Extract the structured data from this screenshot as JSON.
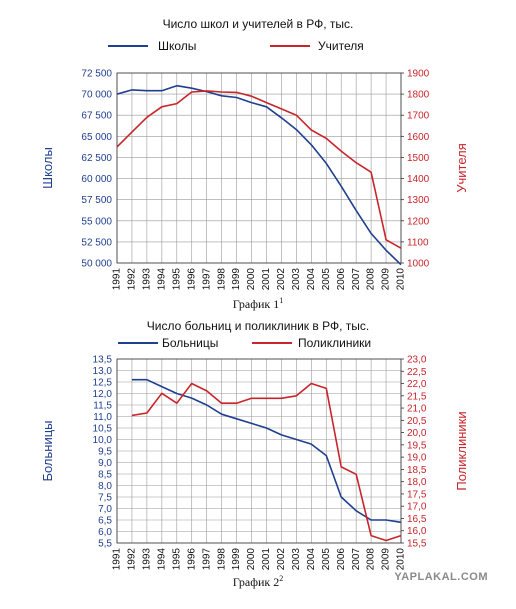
{
  "colors": {
    "blue": "#1f3f8f",
    "red": "#c8252a"
  },
  "chart_data": [
    {
      "type": "line",
      "title": "Число школ и учителей в РФ, тыс.",
      "caption_text": "График 1",
      "caption_sup": "1",
      "x": [
        1991,
        1992,
        1993,
        1994,
        1995,
        1996,
        1997,
        1998,
        1999,
        2000,
        2001,
        2002,
        2003,
        2004,
        2005,
        2006,
        2007,
        2008,
        2009,
        2010
      ],
      "xlabels": [
        "1991",
        "1992",
        "1993",
        "1994",
        "1995",
        "1996",
        "1997",
        "1998",
        "1999",
        "2000",
        "2001",
        "2002",
        "2003",
        "2004",
        "2005",
        "2006",
        "2007",
        "2008",
        "2009",
        "2010"
      ],
      "left_axis": {
        "label": "Школы",
        "min": 50000,
        "max": 72500,
        "ticks": [
          50000,
          52500,
          55000,
          57500,
          60000,
          62500,
          65000,
          67500,
          70000,
          72500
        ],
        "tick_labels": [
          "50 000",
          "52 500",
          "55 000",
          "57 500",
          "60 000",
          "62 500",
          "65 000",
          "67 500",
          "70 000",
          "72 500"
        ]
      },
      "right_axis": {
        "label": "Учителя",
        "min": 1000,
        "max": 1900,
        "ticks": [
          1000,
          1100,
          1200,
          1300,
          1400,
          1500,
          1600,
          1700,
          1800,
          1900
        ],
        "tick_labels": [
          "1000",
          "1100",
          "1200",
          "1300",
          "1400",
          "1500",
          "1600",
          "1700",
          "1800",
          "1900"
        ]
      },
      "series": [
        {
          "name": "Школы",
          "axis": "left",
          "color": "blue",
          "x": [
            1991,
            1992,
            1993,
            1994,
            1995,
            1996,
            1997,
            1998,
            1999,
            2000,
            2001,
            2002,
            2003,
            2004,
            2005,
            2006,
            2007,
            2008,
            2009,
            2010
          ],
          "values": [
            70000,
            70500,
            70400,
            70400,
            71000,
            70700,
            70300,
            69800,
            69600,
            69000,
            68500,
            67200,
            65800,
            64000,
            61800,
            59100,
            56200,
            53500,
            51500,
            49800
          ]
        },
        {
          "name": "Учителя",
          "axis": "right",
          "color": "red",
          "x": [
            1991,
            1992,
            1993,
            1994,
            1995,
            1996,
            1997,
            1998,
            1999,
            2000,
            2001,
            2002,
            2003,
            2004,
            2005,
            2006,
            2007,
            2008,
            2009,
            2010
          ],
          "values": [
            1550,
            1620,
            1690,
            1740,
            1755,
            1810,
            1815,
            1810,
            1808,
            1790,
            1760,
            1730,
            1700,
            1630,
            1590,
            1530,
            1475,
            1430,
            1110,
            1070
          ]
        }
      ]
    },
    {
      "type": "line",
      "title": "Число больниц и поликлиник в РФ, тыс.",
      "caption_text": "График 2",
      "caption_sup": "2",
      "x": [
        1991,
        1992,
        1993,
        1994,
        1995,
        1996,
        1997,
        1998,
        1999,
        2000,
        2001,
        2002,
        2003,
        2004,
        2005,
        2006,
        2007,
        2008,
        2009,
        2010
      ],
      "xlabels": [
        "1991",
        "1992",
        "1993",
        "1994",
        "1995",
        "1996",
        "1997",
        "1998",
        "1999",
        "2000",
        "2001",
        "2002",
        "2003",
        "2004",
        "2005",
        "2006",
        "2007",
        "2008",
        "2009",
        "2010"
      ],
      "left_axis": {
        "label": "Больницы",
        "min": 5.5,
        "max": 13.5,
        "ticks": [
          5.5,
          6.0,
          6.5,
          7.0,
          7.5,
          8.0,
          8.5,
          9.0,
          9.5,
          10.0,
          10.5,
          11.0,
          11.5,
          12.0,
          12.5,
          13.0,
          13.5
        ],
        "tick_labels": [
          "5,5",
          "6,0",
          "6,5",
          "7,0",
          "7,5",
          "8,0",
          "8,5",
          "9,0",
          "9,5",
          "10,0",
          "10,5",
          "11,0",
          "11,5",
          "12,0",
          "12,5",
          "13,0",
          "13,5"
        ]
      },
      "right_axis": {
        "label": "Поликлиники",
        "min": 15.5,
        "max": 23.0,
        "ticks": [
          15.5,
          16.0,
          16.5,
          17.0,
          17.5,
          18.0,
          18.5,
          19.0,
          19.5,
          20.0,
          20.5,
          21.0,
          21.5,
          22.0,
          22.5,
          23.0
        ],
        "tick_labels": [
          "15,5",
          "16,0",
          "16,5",
          "17,0",
          "17,5",
          "18,0",
          "18,5",
          "19,0",
          "19,5",
          "20,0",
          "20,5",
          "21,0",
          "21,5",
          "22,0",
          "22,5",
          "23,0"
        ]
      },
      "series": [
        {
          "name": "Больницы",
          "axis": "left",
          "color": "blue",
          "x": [
            1992,
            1993,
            1994,
            1995,
            1996,
            1997,
            1998,
            1999,
            2000,
            2001,
            2002,
            2003,
            2004,
            2005,
            2006,
            2007,
            2008,
            2009,
            2010
          ],
          "values": [
            12.6,
            12.6,
            12.3,
            12.0,
            11.8,
            11.5,
            11.1,
            10.9,
            10.7,
            10.5,
            10.2,
            10.0,
            9.8,
            9.3,
            7.5,
            6.9,
            6.5,
            6.5,
            6.4
          ]
        },
        {
          "name": "Поликлиники",
          "axis": "right",
          "color": "red",
          "x": [
            1992,
            1993,
            1994,
            1995,
            1996,
            1997,
            1998,
            1999,
            2000,
            2001,
            2002,
            2003,
            2004,
            2005,
            2006,
            2007,
            2008,
            2009,
            2010
          ],
          "values": [
            20.7,
            20.8,
            21.6,
            21.2,
            22.0,
            21.7,
            21.2,
            21.2,
            21.4,
            21.4,
            21.4,
            21.5,
            22.0,
            21.8,
            18.6,
            18.3,
            15.8,
            15.6,
            15.8
          ]
        }
      ]
    }
  ],
  "watermark": "YAPLAKAL.COM"
}
